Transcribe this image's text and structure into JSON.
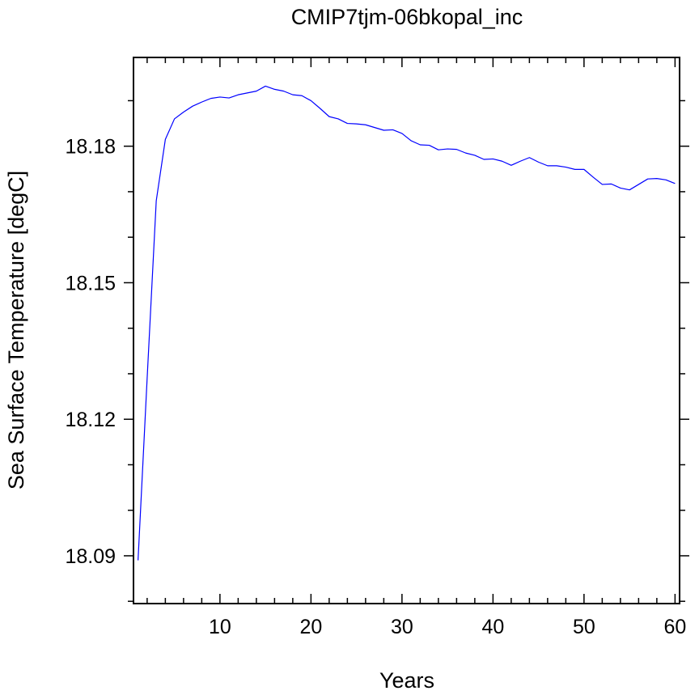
{
  "chart_data": {
    "type": "line",
    "title": "CMIP7tjm-06bkopal_inc",
    "xlabel": "Years",
    "ylabel": "Sea Surface Temperature [degC]",
    "xlim": [
      0.5,
      60.5
    ],
    "ylim": [
      18.0795,
      18.1995
    ],
    "xticks": [
      10,
      20,
      30,
      40,
      50,
      60
    ],
    "yticks": [
      18.09,
      18.12,
      18.15,
      18.18
    ],
    "x_minor_step": 2,
    "y_minor_step": 0.01,
    "grid": false,
    "line_color": "#0000ff",
    "series": [
      {
        "x": [
          1,
          2,
          3,
          4,
          5,
          6,
          7,
          8,
          9,
          10,
          11,
          12,
          13,
          14,
          15,
          16,
          17,
          18,
          19,
          20,
          21,
          22,
          23,
          24,
          25,
          26,
          27,
          28,
          29,
          30,
          31,
          32,
          33,
          34,
          35,
          36,
          37,
          38,
          39,
          40,
          41,
          42,
          43,
          44,
          45,
          46,
          47,
          48,
          49,
          50,
          51,
          52,
          53,
          54,
          55,
          56,
          57,
          58,
          59,
          60
        ],
        "y": [
          18.089,
          18.129,
          18.168,
          18.1815,
          18.186,
          18.1875,
          18.1888,
          18.1897,
          18.1905,
          18.1908,
          18.1906,
          18.1913,
          18.1917,
          18.1921,
          18.1932,
          18.1925,
          18.1921,
          18.1913,
          18.1911,
          18.19,
          18.1883,
          18.1865,
          18.186,
          18.185,
          18.1849,
          18.1847,
          18.1841,
          18.1835,
          18.1836,
          18.1828,
          18.1812,
          18.1803,
          18.1802,
          18.1792,
          18.1794,
          18.1793,
          18.1785,
          18.178,
          18.1771,
          18.1772,
          18.1767,
          18.1758,
          18.1767,
          18.1775,
          18.1765,
          18.1757,
          18.1757,
          18.1754,
          18.1749,
          18.1749,
          18.1732,
          18.1716,
          18.1717,
          18.1708,
          18.1704,
          18.1716,
          18.1728,
          18.1729,
          18.1726,
          18.1718
        ]
      }
    ]
  }
}
